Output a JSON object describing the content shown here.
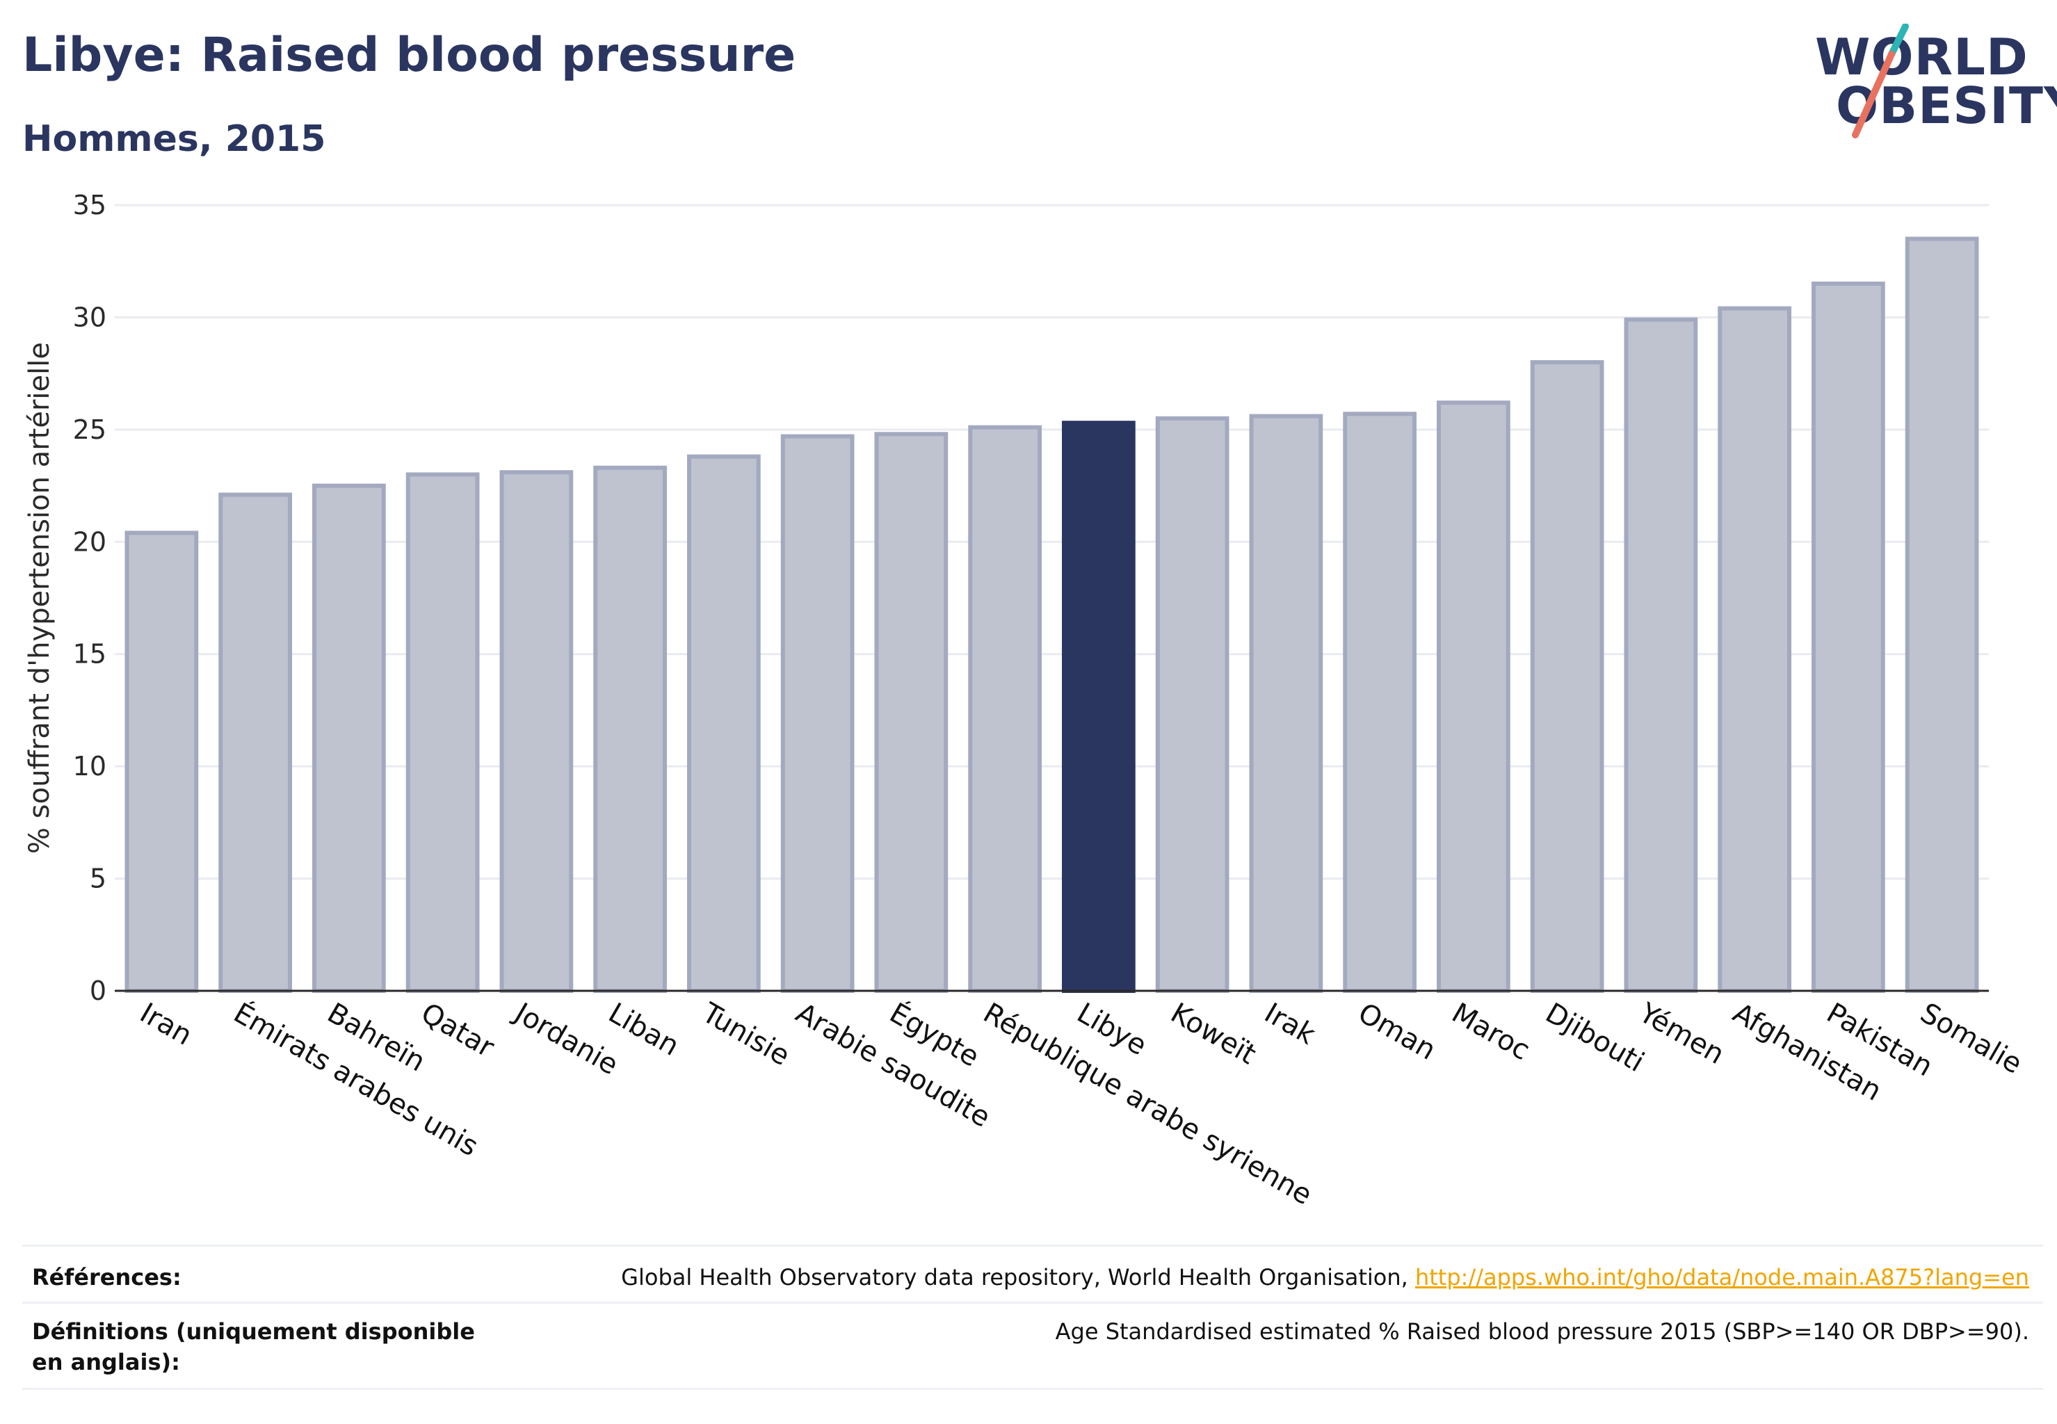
{
  "title": "Libye: Raised blood pressure",
  "subtitle": "Hommes, 2015",
  "logo": {
    "line1": "WORLD",
    "line2": "OBESITY"
  },
  "colors": {
    "highlight": "#2a3560",
    "bar_fill": "#bfc3d0",
    "bar_stroke": "#a3a9bf",
    "grid": "#e9ebf0",
    "text": "#2a3560",
    "link": "#f0a500"
  },
  "chart_data": {
    "type": "bar",
    "ylabel": "% souffrant d'hypertension artérielle",
    "xlabel": "",
    "ylim": [
      0,
      35
    ],
    "yticks": [
      0,
      5,
      10,
      15,
      20,
      25,
      30,
      35
    ],
    "highlight": "Libye",
    "categories": [
      "Iran",
      "Émirats arabes unis",
      "Bahreïn",
      "Qatar",
      "Jordanie",
      "Liban",
      "Tunisie",
      "Arabie saoudite",
      "Égypte",
      "République arabe syrienne",
      "Libye",
      "Koweït",
      "Irak",
      "Oman",
      "Maroc",
      "Djibouti",
      "Yémen",
      "Afghanistan",
      "Pakistan",
      "Somalie"
    ],
    "values": [
      20.4,
      22.1,
      22.5,
      23.0,
      23.1,
      23.3,
      23.8,
      24.7,
      24.8,
      25.1,
      25.3,
      25.5,
      25.6,
      25.7,
      26.2,
      28.0,
      29.9,
      30.4,
      31.5,
      33.5
    ],
    "grid": true,
    "legend": "none"
  },
  "footer": {
    "references_label": "Références:",
    "references_text": "Global Health Observatory data repository, World Health Organisation, ",
    "references_link": "http://apps.who.int/gho/data/node.main.A875?lang=en",
    "definitions_label": "Définitions (uniquement disponible en anglais):",
    "definitions_text": "Age Standardised estimated % Raised blood pressure 2015 (SBP>=140 OR DBP>=90)."
  }
}
